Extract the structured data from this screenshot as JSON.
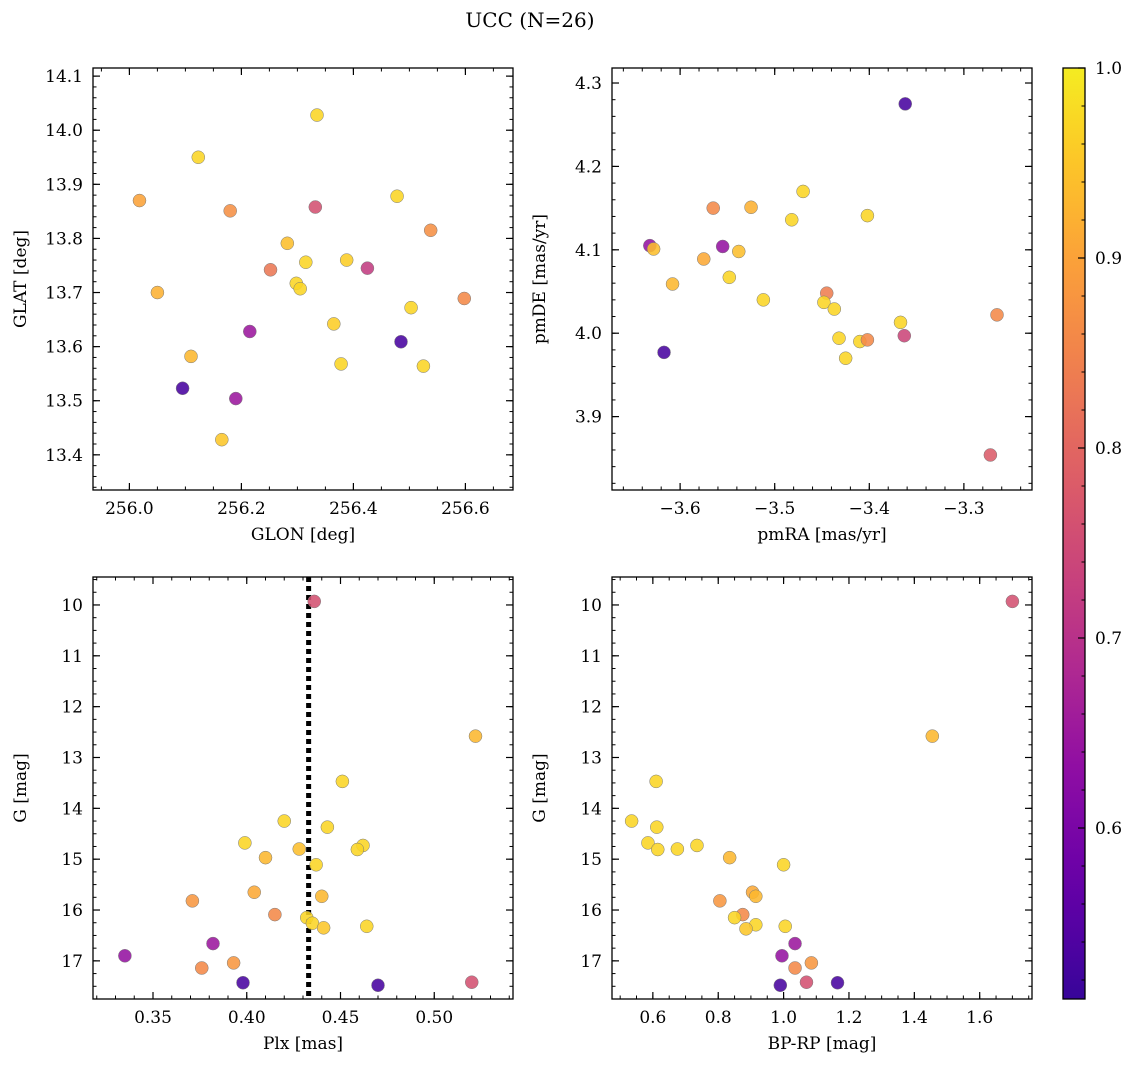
{
  "figure": {
    "title": "UCC (N=26)"
  },
  "colormap": {
    "name": "plasma",
    "range": [
      0.51,
      1.0
    ],
    "ticks": [
      0.6,
      0.7,
      0.8,
      0.9,
      1.0
    ],
    "tick_labels": [
      "0.6",
      "0.7",
      "0.8",
      "0.9",
      "1.0"
    ]
  },
  "chart_data": [
    {
      "type": "scatter",
      "xlabel": "GLON [deg]",
      "ylabel": "GLAT [deg]",
      "xlim": [
        255.935,
        256.685
      ],
      "ylim": [
        13.335,
        14.115
      ],
      "xticks": [
        256.0,
        256.2,
        256.4,
        256.6
      ],
      "xtick_labels": [
        "256.0",
        "256.2",
        "256.4",
        "256.6"
      ],
      "yticks": [
        13.4,
        13.5,
        13.6,
        13.7,
        13.8,
        13.9,
        14.0,
        14.1
      ],
      "ytick_labels": [
        "13.4",
        "13.5",
        "13.6",
        "13.7",
        "13.8",
        "13.9",
        "14.0",
        "14.1"
      ],
      "x": [
        256.335,
        256.123,
        256.018,
        256.478,
        256.18,
        256.332,
        256.538,
        256.282,
        256.252,
        256.315,
        256.388,
        256.425,
        256.05,
        256.298,
        256.305,
        256.503,
        256.598,
        256.365,
        256.215,
        256.378,
        256.485,
        256.525,
        256.11,
        256.095,
        256.19,
        256.165
      ],
      "y": [
        14.028,
        13.95,
        13.87,
        13.878,
        13.851,
        13.858,
        13.815,
        13.791,
        13.742,
        13.756,
        13.76,
        13.745,
        13.7,
        13.717,
        13.707,
        13.672,
        13.689,
        13.642,
        13.628,
        13.568,
        13.609,
        13.564,
        13.582,
        13.523,
        13.504,
        13.428
      ],
      "c": [
        0.97,
        0.97,
        0.9,
        0.97,
        0.87,
        0.76,
        0.87,
        0.94,
        0.83,
        0.97,
        0.96,
        0.72,
        0.92,
        0.97,
        0.97,
        0.97,
        0.86,
        0.96,
        0.65,
        0.97,
        0.53,
        0.97,
        0.93,
        0.53,
        0.65,
        0.95
      ]
    },
    {
      "type": "scatter",
      "xlabel": "pmRA [mas/yr]",
      "ylabel": "pmDE [mas/yr]",
      "xlim": [
        -3.672,
        -3.228
      ],
      "ylim": [
        3.812,
        4.318
      ],
      "xticks": [
        -3.6,
        -3.5,
        -3.4,
        -3.3
      ],
      "xtick_labels": [
        "−3.6",
        "−3.5",
        "−3.4",
        "−3.3"
      ],
      "yticks": [
        3.9,
        4.0,
        4.1,
        4.2,
        4.3
      ],
      "ytick_labels": [
        "3.9",
        "4.0",
        "4.1",
        "4.2",
        "4.3"
      ],
      "x": [
        -3.362,
        -3.47,
        -3.565,
        -3.525,
        -3.482,
        -3.402,
        -3.632,
        -3.628,
        -3.555,
        -3.538,
        -3.575,
        -3.548,
        -3.608,
        -3.445,
        -3.512,
        -3.448,
        -3.437,
        -3.432,
        -3.41,
        -3.402,
        -3.425,
        -3.367,
        -3.363,
        -3.265,
        -3.617,
        -3.272
      ],
      "y": [
        4.275,
        4.17,
        4.15,
        4.151,
        4.136,
        4.141,
        4.105,
        4.101,
        4.104,
        4.098,
        4.089,
        4.067,
        4.059,
        4.048,
        4.04,
        4.037,
        4.029,
        3.994,
        3.99,
        3.992,
        3.97,
        4.013,
        3.997,
        4.022,
        3.977,
        3.854
      ],
      "c": [
        0.53,
        0.97,
        0.86,
        0.92,
        0.97,
        0.97,
        0.64,
        0.94,
        0.64,
        0.94,
        0.91,
        0.97,
        0.93,
        0.84,
        0.97,
        0.97,
        0.97,
        0.97,
        0.97,
        0.86,
        0.97,
        0.97,
        0.74,
        0.86,
        0.53,
        0.78
      ]
    },
    {
      "type": "scatter",
      "xlabel": "Plx [mas]",
      "ylabel": "G [mag]",
      "xlim": [
        0.318,
        0.542
      ],
      "ylim": [
        17.75,
        9.45
      ],
      "y_inverted": true,
      "xticks": [
        0.35,
        0.4,
        0.45,
        0.5
      ],
      "xtick_labels": [
        "0.35",
        "0.40",
        "0.45",
        "0.50"
      ],
      "yticks": [
        10,
        11,
        12,
        13,
        14,
        15,
        16,
        17
      ],
      "ytick_labels": [
        "10",
        "11",
        "12",
        "13",
        "14",
        "15",
        "16",
        "17"
      ],
      "vline": {
        "x": 0.433,
        "style": "dotted"
      },
      "x": [
        0.436,
        0.522,
        0.451,
        0.443,
        0.42,
        0.399,
        0.428,
        0.462,
        0.459,
        0.41,
        0.437,
        0.404,
        0.44,
        0.371,
        0.415,
        0.432,
        0.435,
        0.441,
        0.464,
        0.382,
        0.335,
        0.393,
        0.376,
        0.398,
        0.47,
        0.52
      ],
      "y": [
        9.93,
        12.58,
        13.47,
        14.37,
        14.25,
        14.68,
        14.8,
        14.73,
        14.81,
        14.97,
        15.11,
        15.65,
        15.73,
        15.82,
        16.09,
        16.15,
        16.26,
        16.35,
        16.32,
        16.66,
        16.9,
        17.04,
        17.14,
        17.43,
        17.48,
        17.42
      ],
      "c": [
        0.76,
        0.93,
        0.97,
        0.97,
        0.97,
        0.97,
        0.94,
        0.97,
        0.97,
        0.93,
        0.97,
        0.91,
        0.93,
        0.88,
        0.86,
        0.97,
        0.97,
        0.95,
        0.97,
        0.65,
        0.64,
        0.88,
        0.86,
        0.53,
        0.53,
        0.76
      ]
    },
    {
      "type": "scatter",
      "xlabel": "BP-RP [mag]",
      "ylabel": "G [mag]",
      "xlim": [
        0.475,
        1.76
      ],
      "ylim": [
        17.75,
        9.45
      ],
      "y_inverted": true,
      "xticks": [
        0.6,
        0.8,
        1.0,
        1.2,
        1.4,
        1.6
      ],
      "xtick_labels": [
        "0.6",
        "0.8",
        "1.0",
        "1.2",
        "1.4",
        "1.6"
      ],
      "yticks": [
        10,
        11,
        12,
        13,
        14,
        15,
        16,
        17
      ],
      "ytick_labels": [
        "10",
        "11",
        "12",
        "13",
        "14",
        "15",
        "16",
        "17"
      ],
      "x": [
        1.7,
        1.455,
        0.61,
        0.535,
        0.612,
        0.585,
        0.615,
        0.675,
        0.735,
        0.835,
        1.0,
        0.905,
        0.915,
        0.805,
        0.875,
        0.85,
        0.915,
        0.885,
        1.005,
        1.035,
        0.995,
        1.085,
        1.035,
        1.165,
        0.99,
        1.07
      ],
      "y": [
        9.93,
        12.58,
        13.47,
        14.25,
        14.37,
        14.68,
        14.81,
        14.8,
        14.73,
        14.97,
        15.11,
        15.65,
        15.73,
        15.82,
        16.09,
        16.15,
        16.29,
        16.37,
        16.32,
        16.66,
        16.9,
        17.04,
        17.14,
        17.43,
        17.48,
        17.42
      ],
      "c": [
        0.76,
        0.93,
        0.97,
        0.97,
        0.97,
        0.97,
        0.97,
        0.97,
        0.97,
        0.93,
        0.97,
        0.91,
        0.93,
        0.88,
        0.86,
        0.97,
        0.97,
        0.95,
        0.97,
        0.65,
        0.64,
        0.88,
        0.86,
        0.53,
        0.53,
        0.76
      ]
    }
  ]
}
